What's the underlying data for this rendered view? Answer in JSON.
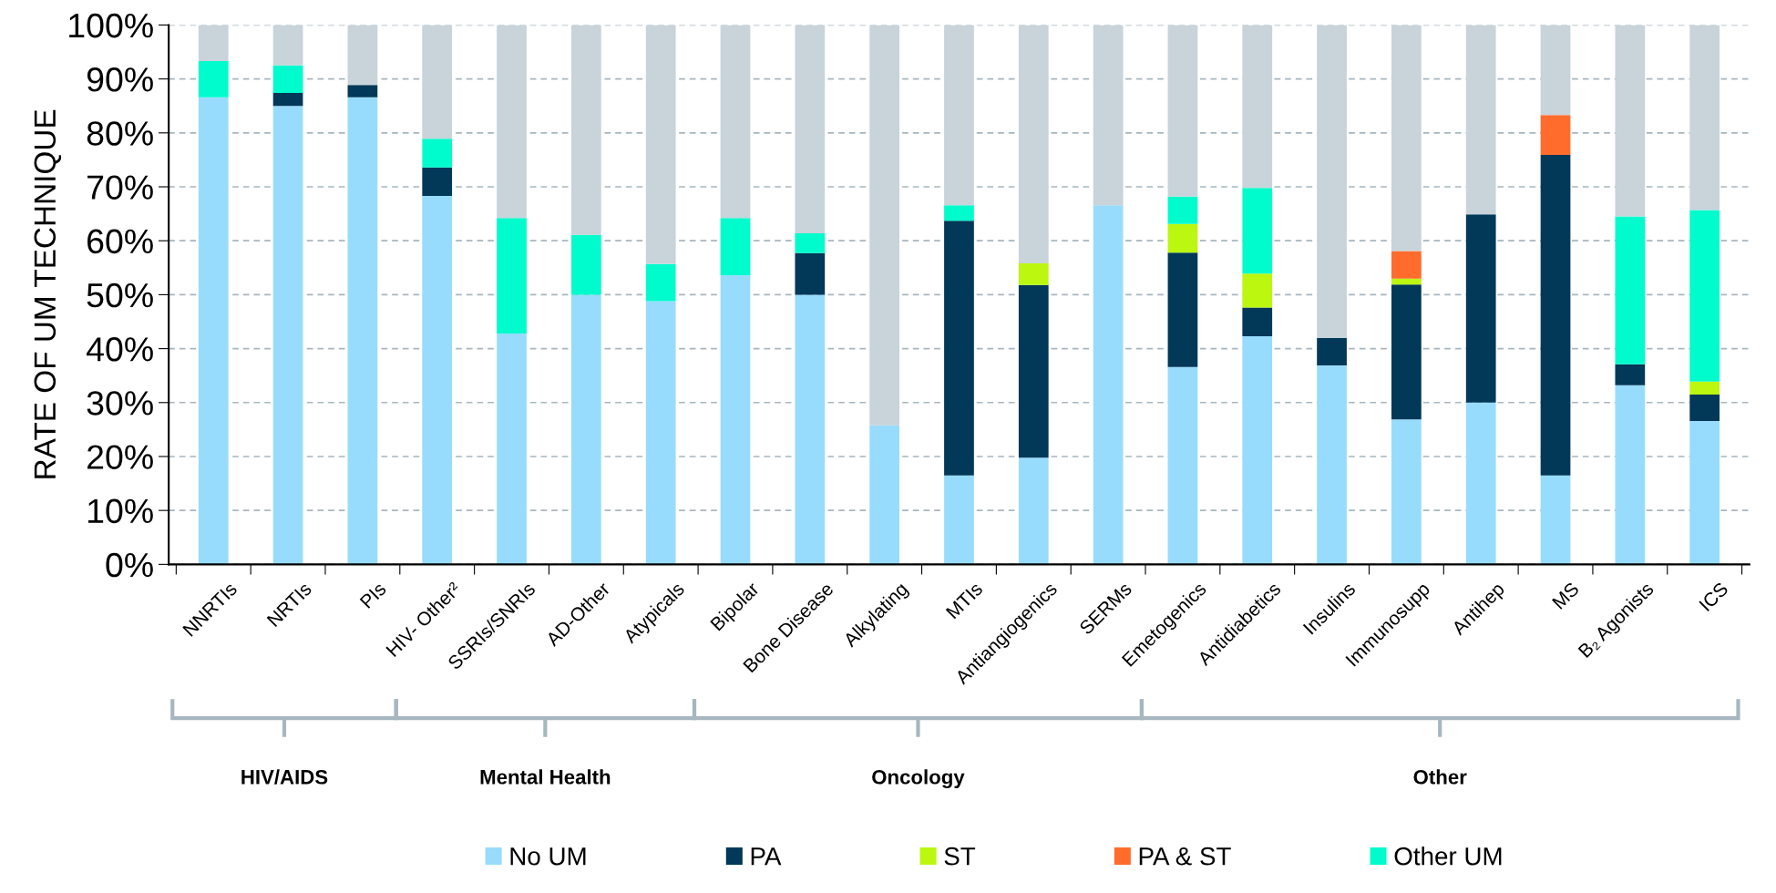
{
  "chart_data": {
    "type": "bar",
    "stacked": true,
    "ylabel": "RATE OF UM TECHNIQUE",
    "categories": [
      "NNRTIs",
      "NRTIs",
      "PIs",
      "HIV- Other²",
      "SSRIs/SNRIs",
      "AD-Other",
      "Atypicals",
      "Bipolar",
      "Bone Disease",
      "Alkylating",
      "MTIs",
      "Antiangiogenics",
      "SERMs",
      "Emetogenics",
      "Antidiabetics",
      "Insulins",
      "Immunosupp",
      "Antihep",
      "MS",
      "B₂ Agonists",
      "ICS"
    ],
    "series": [
      {
        "name": "No UM",
        "color": "#97dcfd",
        "values": [
          86.6,
          85.0,
          86.6,
          68.3,
          42.8,
          50.0,
          48.8,
          53.6,
          50.0,
          25.8,
          16.5,
          19.8,
          66.6,
          36.6,
          42.3,
          36.9,
          26.9,
          30.0,
          16.5,
          33.2,
          26.6
        ]
      },
      {
        "name": "PA",
        "color": "#023858",
        "values": [
          0,
          2.4,
          2.3,
          5.3,
          0,
          0,
          0,
          0,
          7.7,
          0,
          47.2,
          32.0,
          0,
          21.2,
          5.3,
          5.1,
          25.0,
          34.9,
          59.4,
          3.9,
          4.9
        ]
      },
      {
        "name": "ST",
        "color": "#bbf70f",
        "values": [
          0,
          0,
          0,
          0,
          0,
          0,
          0,
          0,
          0,
          0,
          0,
          4.0,
          0,
          5.3,
          6.3,
          0,
          1.1,
          0,
          0,
          0,
          2.4
        ]
      },
      {
        "name": "PA & ST",
        "color": "#ff6c2c",
        "values": [
          0,
          0,
          0,
          0,
          0,
          0,
          0,
          0,
          0,
          0,
          0,
          0,
          0,
          0,
          0,
          0,
          5.1,
          0,
          7.4,
          0,
          0
        ]
      },
      {
        "name": "Other UM",
        "color": "#00fccc",
        "values": [
          6.7,
          5.1,
          0,
          5.3,
          21.4,
          11.1,
          6.9,
          10.6,
          3.7,
          0,
          2.9,
          0,
          0,
          5.1,
          15.9,
          0,
          0,
          0,
          0,
          27.4,
          31.8
        ]
      },
      {
        "color": "#c8d3da",
        "values": [
          6.7,
          7.5,
          11.1,
          21.1,
          35.8,
          38.9,
          44.3,
          35.8,
          38.6,
          74.2,
          33.4,
          44.2,
          33.4,
          31.8,
          30.2,
          58.0,
          41.9,
          35.1,
          16.7,
          35.5,
          34.3
        ]
      }
    ],
    "ylim": [
      0,
      100
    ],
    "yticks": [
      {
        "value": 0,
        "label": "0%"
      },
      {
        "value": 10,
        "label": "10%"
      },
      {
        "value": 20,
        "label": "20%"
      },
      {
        "value": 30,
        "label": "30%"
      },
      {
        "value": 40,
        "label": "40%"
      },
      {
        "value": 50,
        "label": "50%"
      },
      {
        "value": 60,
        "label": "60%"
      },
      {
        "value": 70,
        "label": "70%"
      },
      {
        "value": 80,
        "label": "80%"
      },
      {
        "value": 90,
        "label": "90%"
      },
      {
        "value": 100,
        "label": "100%"
      }
    ],
    "grid": "y",
    "legend": "bottom",
    "annotations": [
      "HIV/AIDS",
      "Mental Health",
      "Oncology",
      "Other"
    ]
  }
}
